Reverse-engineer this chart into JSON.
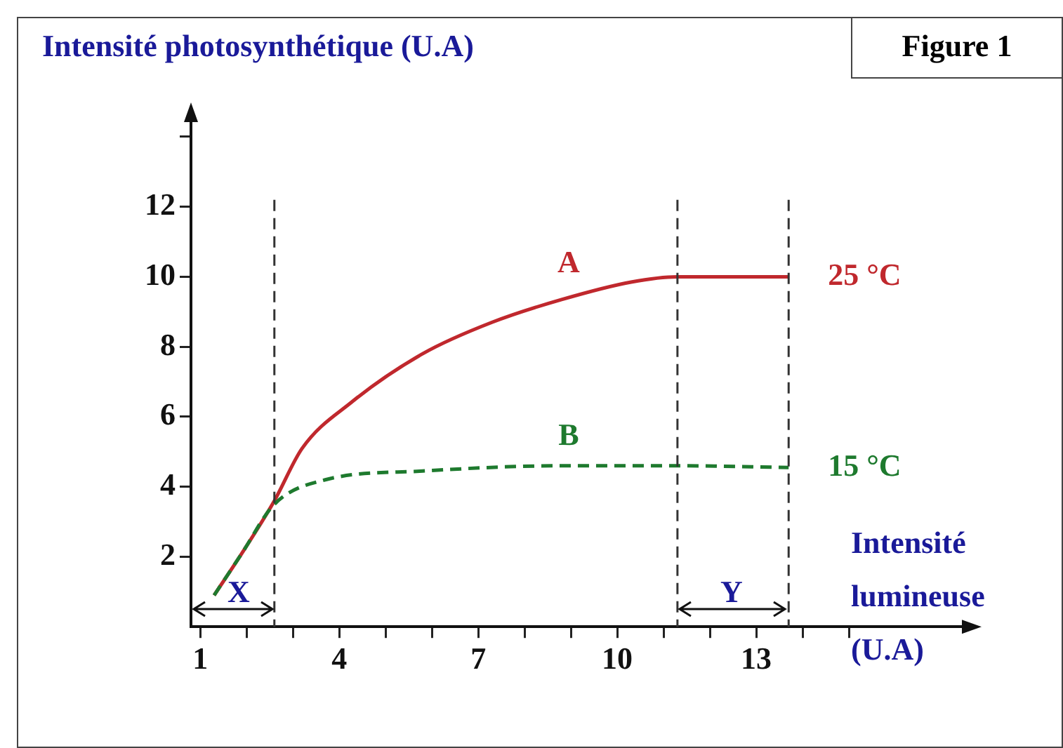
{
  "chart_data": {
    "type": "line",
    "ylabel": "Intensité photosynthétique (U.A)",
    "xlabel": "Intensité lumineuse (U.A)",
    "annotations": [
      "Figure 1",
      "A",
      "B",
      "X",
      "Y"
    ],
    "xlim": [
      0.8,
      17.5
    ],
    "ylim": [
      0,
      14.5
    ],
    "xticks": [
      1,
      {
        "value": 2,
        "label": null
      },
      {
        "value": 3,
        "label": null
      },
      4,
      {
        "value": 5,
        "label": null
      },
      {
        "value": 6,
        "label": null
      },
      7,
      {
        "value": 8,
        "label": null
      },
      {
        "value": 9,
        "label": null
      },
      10,
      {
        "value": 11,
        "label": null
      },
      {
        "value": 12,
        "label": null
      },
      13,
      {
        "value": 14,
        "label": null
      },
      {
        "value": 15,
        "label": null
      }
    ],
    "yticks": [
      2,
      4,
      6,
      8,
      10,
      12,
      {
        "value": 14,
        "label": null
      }
    ],
    "grid": false,
    "legend": false,
    "marker": "none",
    "series": [
      {
        "name": "25 °C",
        "color": "#c0282d",
        "line_style": "solid",
        "x": [
          1.3,
          1.9,
          2.6,
          3.2,
          4.25,
          5.8,
          7.3,
          8.8,
          10.3,
          11.3,
          13.7
        ],
        "values": [
          0.9,
          2.1,
          3.6,
          5.1,
          6.4,
          7.8,
          8.7,
          9.35,
          9.85,
          10,
          10
        ]
      },
      {
        "name": "15 °C",
        "color": "#1e7a2e",
        "line_style": "dashed",
        "x": [
          1.3,
          1.9,
          2.6,
          3.7,
          5.8,
          8.8,
          11.3,
          13.7
        ],
        "values": [
          0.9,
          2.1,
          3.5,
          4.2,
          4.45,
          4.6,
          4.6,
          4.55
        ]
      }
    ],
    "ref_lines": [
      {
        "axis": "x",
        "value": 2.6,
        "line_style": "dashed",
        "color": "#333333"
      },
      {
        "axis": "x",
        "value": 11.3,
        "line_style": "dashed",
        "color": "#333333"
      },
      {
        "axis": "x",
        "value": 13.7,
        "line_style": "dashed",
        "color": "#333333"
      }
    ]
  }
}
